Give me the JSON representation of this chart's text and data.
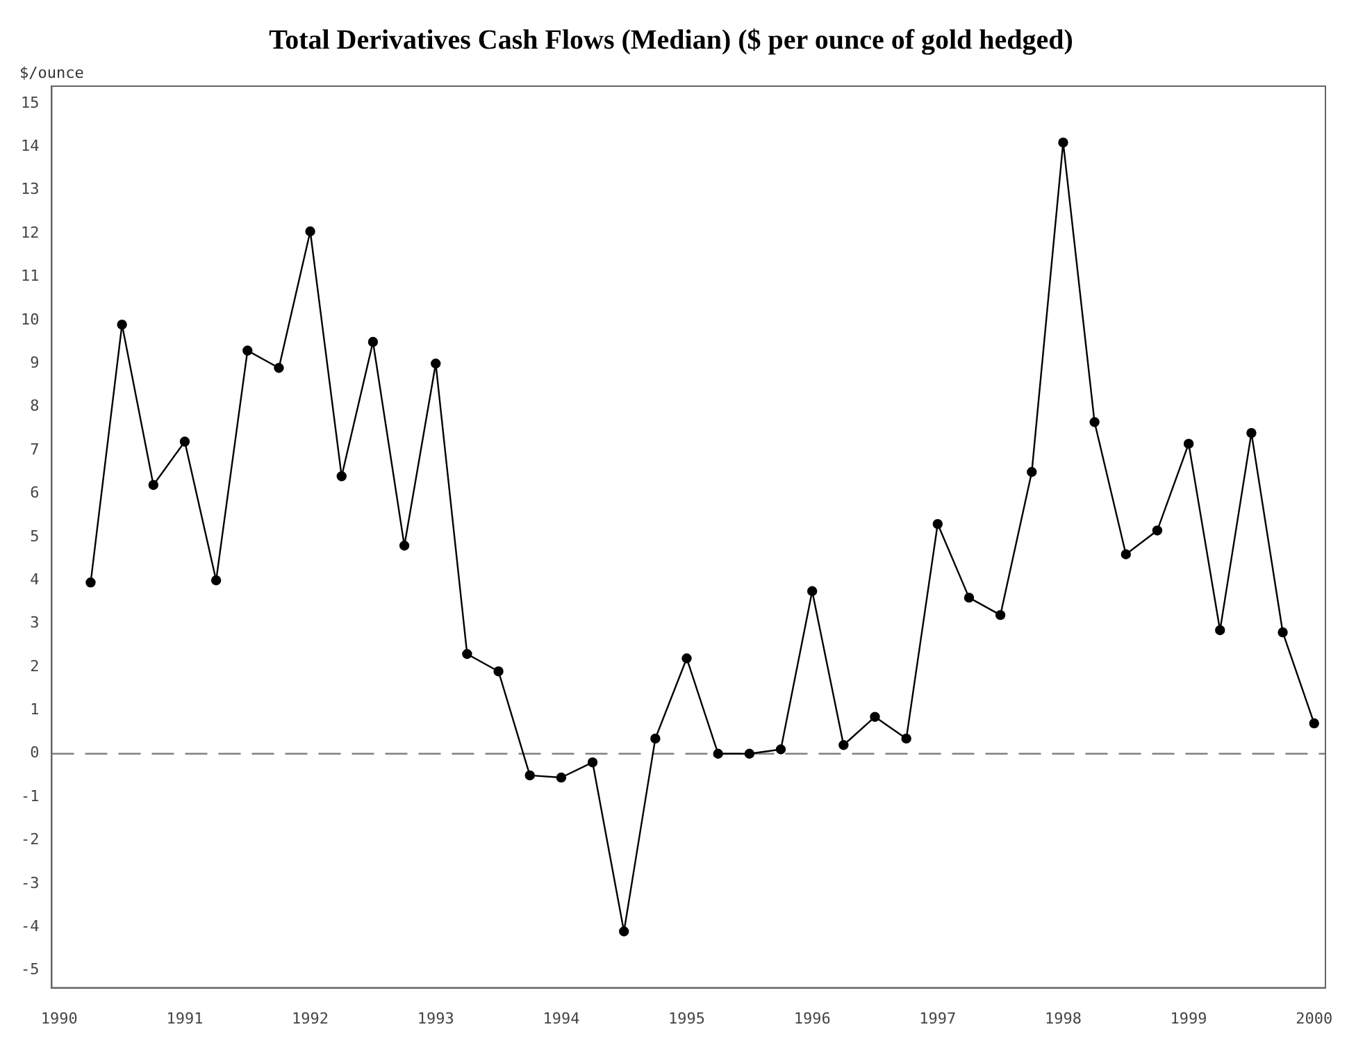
{
  "chart_data": {
    "type": "line",
    "title": "Total Derivatives Cash Flows (Median) ($ per ounce of gold hedged)",
    "ylabel": "$/ounce",
    "x": [
      1990.25,
      1990.5,
      1990.75,
      1991,
      1991.25,
      1991.5,
      1991.75,
      1992,
      1992.25,
      1992.5,
      1992.75,
      1993,
      1993.25,
      1993.5,
      1993.75,
      1994,
      1994.25,
      1994.5,
      1994.75,
      1995,
      1995.25,
      1995.5,
      1995.75,
      1996,
      1996.25,
      1996.5,
      1996.75,
      1997,
      1997.25,
      1997.5,
      1997.75,
      1998,
      1998.25,
      1998.5,
      1998.75,
      1999,
      1999.25,
      1999.5,
      1999.75,
      2000
    ],
    "series": [
      {
        "color": "#000000",
        "values": [
          3.95,
          9.9,
          6.2,
          7.2,
          4.0,
          9.3,
          8.9,
          12.05,
          6.4,
          9.5,
          4.8,
          9.0,
          2.3,
          1.9,
          -0.5,
          -0.55,
          -0.2,
          -4.1,
          0.35,
          2.2,
          0,
          0,
          0.1,
          3.75,
          0.2,
          0.85,
          0.35,
          5.3,
          3.6,
          3.2,
          6.5,
          14.1,
          7.65,
          4.6,
          5.15,
          7.15,
          2.85,
          7.4,
          2.8,
          0.7
        ]
      }
    ],
    "xlim": [
      1989.94,
      2000.09
    ],
    "xticks": [
      1990,
      1991,
      1992,
      1993,
      1994,
      1995,
      1996,
      1997,
      1998,
      1999,
      2000
    ],
    "ylim": [
      -5.4,
      15.4
    ],
    "yticks": [
      -5,
      -4,
      -3,
      -2,
      -1,
      0,
      1,
      2,
      3,
      4,
      5,
      6,
      7,
      8,
      9,
      10,
      11,
      12,
      13,
      14,
      15
    ],
    "ref_lines": [
      {
        "axis": "y",
        "value": 0,
        "color": "#808080",
        "line_style": "dashed"
      }
    ],
    "grid": false,
    "legend": false,
    "marker": "circle",
    "line_style": "solid"
  }
}
